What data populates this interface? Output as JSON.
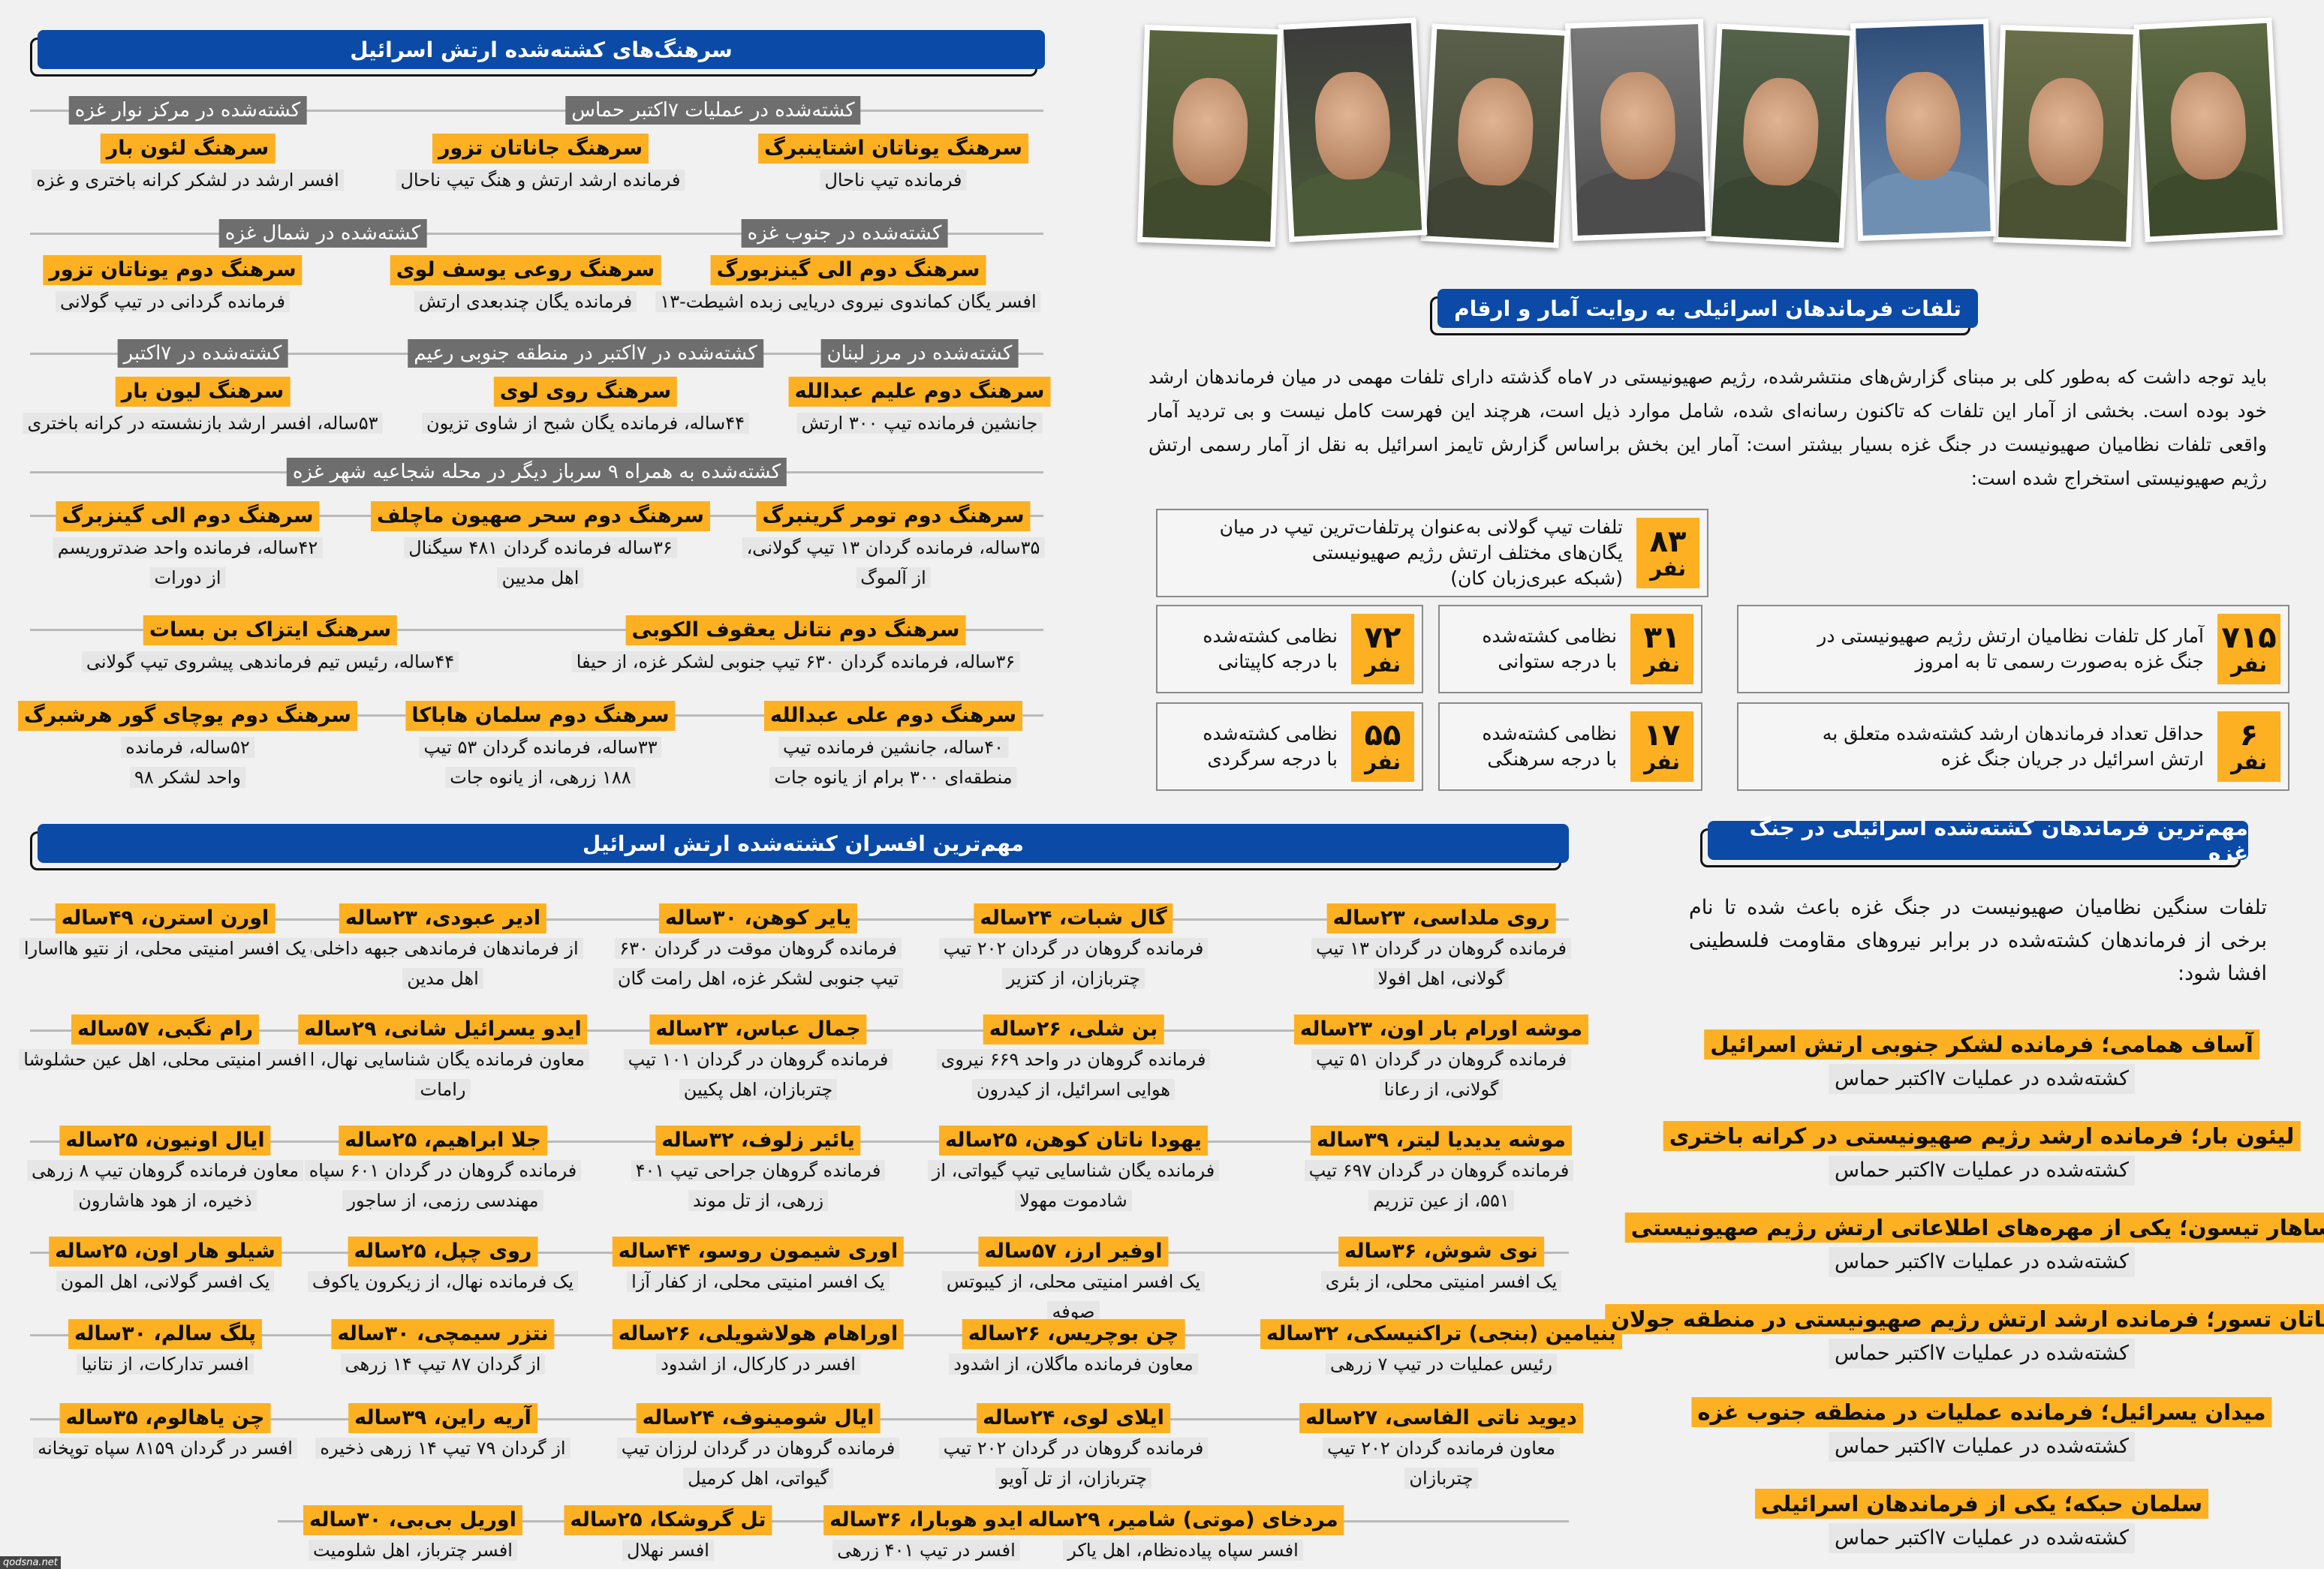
{
  "colonels": {
    "title": "سرهنگ‌های کشته‌شده ارتش اسرائیل",
    "categories": [
      "کشته‌شده در عملیات ۷اکتبر حماس",
      "کشته‌شده در مرکز نوار غزه",
      "کشته‌شده در جنوب غزه",
      "کشته‌شده در شمال غزه",
      "کشته‌شده در مرز لبنان",
      "کشته‌شده در ۷اکتبر در منطقه جنوبی رعیم",
      "کشته‌شده در ۷اکتبر",
      "کشته‌شده به همراه ۹ سرباز دیگر در محله شجاعیه شهر غزه"
    ],
    "people": [
      {
        "name": "سرهنگ یوناتان اشتاینبرگ",
        "desc": [
          "فرمانده تیپ ناحال"
        ]
      },
      {
        "name": "سرهنگ جاناتان تزور",
        "desc": [
          "فرمانده ارشد ارتش و هنگ تیپ ناحال"
        ]
      },
      {
        "name": "سرهنگ لئون بار",
        "desc": [
          "افسر ارشد در لشکر کرانه باختری و غزه"
        ]
      },
      {
        "name": "سرهنگ دوم الی گینزبورگ",
        "desc": [
          "افسر یگان کماندوی نیروی دریایی زبده اشیطت-۱۳"
        ]
      },
      {
        "name": "سرهنگ روعی یوسف لوی",
        "desc": [
          "فرمانده یگان چندبعدی ارتش"
        ]
      },
      {
        "name": "سرهنگ دوم یوناتان تزور",
        "desc": [
          "فرمانده گردانی در تیپ گولانی"
        ]
      },
      {
        "name": "سرهنگ دوم علیم عبدالله",
        "desc": [
          "جانشین فرمانده تیپ ۳۰۰ ارتش"
        ]
      },
      {
        "name": "سرهنگ روی لوی",
        "desc": [
          "۴۴ساله، فرمانده یگان شبح از شاوی تزیون"
        ]
      },
      {
        "name": "سرهنگ لیون بار",
        "desc": [
          "۵۳ساله، افسر ارشد بازنشسته در کرانه باختری"
        ]
      },
      {
        "name": "سرهنگ دوم تومر گرینبرگ",
        "desc": [
          "۳۵ساله، فرمانده گردان ۱۳ تیپ گولانی،",
          "از آلموگ"
        ]
      },
      {
        "name": "سرهنگ دوم سحر صهیون ماچلف",
        "desc": [
          "۳۶ساله فرمانده گردان ۴۸۱ سیگنال",
          "اهل مدیین"
        ]
      },
      {
        "name": "سرهنگ دوم الی گینزبرگ",
        "desc": [
          "۴۲ساله، فرمانده واحد ضدتروریسم",
          "از دورات"
        ]
      },
      {
        "name": "سرهنگ دوم نتانل یعقوف الکوبی",
        "desc": [
          "۳۶ساله، فرمانده گردان ۶۳۰ تیپ جنوبی لشکر غزه، از حیفا"
        ]
      },
      {
        "name": "سرهنگ ایتزاک بن بسات",
        "desc": [
          "۴۴ساله، رئیس تیم فرماندهی پیشروی تیپ گولانی"
        ]
      },
      {
        "name": "سرهنگ دوم علی عبدالله",
        "desc": [
          "۴۰ساله، جانشین فرمانده تیپ",
          "منطقه‌ای ۳۰۰ برام از یانوه جات"
        ]
      },
      {
        "name": "سرهنگ دوم سلمان هاباکا",
        "desc": [
          "۳۳ساله، فرمانده گردان ۵۳ تیپ",
          "۱۸۸ زرهی، از یانوه جات"
        ]
      },
      {
        "name": "سرهنگ دوم یوچای گور هرشبرگ",
        "desc": [
          "۵۲ساله، فرمانده",
          "واحد لشکر ۹۸"
        ]
      }
    ]
  },
  "stats": {
    "title": "تلفات فرماندهان اسرائیلی به روایت آمار و ارقام",
    "intro": "باید توجه داشت که به‌طور کلی بر مبنای گزارش‌های منتشرشده، رژیم صهیونیستی در ۷ماه گذشته دارای تلفات مهمی در میان فرماندهان ارشد خود بوده است. بخشی از آمار این تلفات که تاکنون رسانه‌ای شده، شامل موارد ذیل است، هرچند این فهرست کامل نیست و بی تردید آمار واقعی تلفات نظامیان صهیونیست در جنگ غزه بسیار بیشتر است: آمار این بخش براساس گزارش تایمز اسرائیل به نقل از آمار رسمی ارتش رژیم صهیونیستی استخراج شده است:",
    "unit": "نفر",
    "boxes": [
      {
        "value": "۸۳",
        "text": [
          "تلفات تیپ گولانی به‌عنوان پرتلفات‌ترین تیپ در میان",
          "یگان‌های مختلف ارتش رژیم صهیونیستی",
          "(شبکه عبری‌زبان کان)"
        ]
      },
      {
        "value": "۷۱۵",
        "text": [
          "آمار کل تلفات نظامیان ارتش رژیم صهیونیستی در",
          "جنگ غزه به‌صورت رسمی تا به امروز"
        ]
      },
      {
        "value": "۳۱",
        "text": [
          "نظامی کشته‌شده",
          "با درجه ستوانی"
        ]
      },
      {
        "value": "۷۲",
        "text": [
          "نظامی کشته‌شده",
          "با درجه کاپیتانی"
        ]
      },
      {
        "value": "۶",
        "text": [
          "حداقل تعداد فرماندهان ارشد کشته‌شده متعلق به",
          "ارتش اسرائیل در جریان جنگ غزه"
        ]
      },
      {
        "value": "۱۷",
        "text": [
          "نظامی کشته‌شده",
          "با درجه سرهنگی"
        ]
      },
      {
        "value": "۵۵",
        "text": [
          "نظامی کشته‌شده",
          "با درجه سرگردی"
        ]
      }
    ]
  },
  "officers": {
    "title": "مهم‌ترین افسران کشته‌شده ارتش اسرائیل",
    "rows": [
      [
        {
          "name": "روی ملداسی، ۲۳ساله",
          "desc": "فرمانده گروهان در گردان ۱۳ تیپ گولانی، اهل افولا"
        },
        {
          "name": "گال شبات، ۲۴ساله",
          "desc": "فرمانده گروهان در گردان ۲۰۲ تیپ چتربازان، از کتزیر"
        },
        {
          "name": "یایر کوهن، ۳۰ساله",
          "desc": "فرمانده گروهان موقت در گردان ۶۳۰ تیپ جنوبی لشکر غزه، اهل رامت گان"
        },
        {
          "name": "ادیر عبودی، ۲۳ساله",
          "desc": "از فرماندهان فرماندهی جبهه داخلی، اهل مدین"
        },
        {
          "name": "اورن استرن، ۴۹ساله",
          "desc": "یک افسر امنیتی محلی، از نتیو هااسارا"
        }
      ],
      [
        {
          "name": "موشه اورام بار اون، ۲۳ساله",
          "desc": "فرمانده گروهان در گردان ۵۱ تیپ گولانی، از رعانا"
        },
        {
          "name": "بن شلی، ۲۶ساله",
          "desc": "فرمانده گروهان در واحد ۶۶۹ نیروی هوایی اسرائیل، از کیدرون"
        },
        {
          "name": "جمال عباس، ۲۳ساله",
          "desc": "فرمانده گروهان در گردان ۱۰۱ تیپ چتربازان، اهل پکیین"
        },
        {
          "name": "ایدو یسرائیل شانی، ۲۹ساله",
          "desc": "معاون فرمانده یگان شناسایی نهال، از رامات"
        },
        {
          "name": "رام نگبی، ۵۷ساله",
          "desc": "افسر امنیتی محلی، اهل عین حشلوشا"
        }
      ],
      [
        {
          "name": "موشه یدیدیا لیتر، ۳۹ساله",
          "desc": "فرمانده گروهان در گردان ۶۹۷ تیپ ۵۵۱، از عین تزریم"
        },
        {
          "name": "یهودا ناتان کوهن، ۲۵ساله",
          "desc": "فرمانده یگان شناسایی تیپ گیواتی، از شادموت مهولا"
        },
        {
          "name": "یائیر زلوف، ۳۲ساله",
          "desc": "فرمانده گروهان جراحی تیپ ۴۰۱ زرهی، از تل موند"
        },
        {
          "name": "جلا ابراهیم، ۲۵ساله",
          "desc": "فرمانده گروهان در گردان ۶۰۱ سپاه مهندسی رزمی، از ساجور"
        },
        {
          "name": "ایال اونیون، ۲۵ساله",
          "desc": "معاون فرمانده گروهان تیپ ۸ زرهی ذخیره، از هود هاشارون"
        }
      ],
      [
        {
          "name": "نوی شوش، ۳۶ساله",
          "desc": "یک افسر امنیتی محلی، از بئری"
        },
        {
          "name": "اوفیر ارز، ۵۷ساله",
          "desc": "یک افسر امنیتی محلی، از کیبوتس صوفه"
        },
        {
          "name": "اوری شیمون روسو، ۴۴ساله",
          "desc": "یک افسر امنیتی محلی، از کفار آزا"
        },
        {
          "name": "روی چپل، ۲۵ساله",
          "desc": "یک فرمانده نهال، از زیکرون یاکوف"
        },
        {
          "name": "شیلو هار اون، ۲۵ساله",
          "desc": "یک افسر گولانی، اهل المون"
        }
      ],
      [
        {
          "name": "بنیامین (بنجی) تراکنیسکی، ۳۲ساله",
          "desc": "رئیس عملیات در تیپ ۷ زرهی"
        },
        {
          "name": "چن بوچریس، ۲۶ساله",
          "desc": "معاون فرمانده ماگلان، از اشدود"
        },
        {
          "name": "اوراهام هولاشویلی، ۲۶ساله",
          "desc": "افسر در کارکال، از اشدود"
        },
        {
          "name": "نتزر سیمچی، ۳۰ساله",
          "desc": "از گردان ۸۷ تیپ ۱۴ زرهی"
        },
        {
          "name": "پلگ سالم، ۳۰ساله",
          "desc": "افسر تدارکات، از نتانیا"
        }
      ],
      [
        {
          "name": "دیوید ناتی الفاسی، ۲۷ساله",
          "desc": "معاون فرمانده گردان ۲۰۲ تیپ چتربازان"
        },
        {
          "name": "ایلای لوی، ۲۴ساله",
          "desc": "فرمانده گروهان در گردان ۲۰۲ تیپ چتربازان، از تل آویو"
        },
        {
          "name": "ایال شومینوف، ۲۴ساله",
          "desc": "فرمانده گروهان در گردان لرزان تیپ گیواتی، اهل کرمیل"
        },
        {
          "name": "آریه راین، ۳۹ساله",
          "desc": "از گردان ۷۹ تیپ ۱۴ زرهی ذخیره"
        },
        {
          "name": "چن یاهالوم، ۳۵ساله",
          "desc": "افسر در گردان ۸۱۵۹ سپاه توپخانه"
        }
      ],
      [
        {
          "name": "مردخای (موتی) شامیر، ۲۹ساله",
          "desc": "افسر سپاه پیاده‌نظام، اهل یاکر"
        },
        {
          "name": "ایدو هوبارا، ۳۶ساله",
          "desc": "افسر در تیپ ۴۰۱ زرهی"
        },
        {
          "name": "تل گروشکا، ۲۵ساله",
          "desc": "افسر نهلال"
        },
        {
          "name": "اوریل بی‌بی، ۳۰ساله",
          "desc": "افسر چترباز، اهل شلومیت"
        }
      ]
    ]
  },
  "commanders": {
    "title": "مهم‌ترین فرماندهان کشته‌شده اسرائیلی در جنگ غزه",
    "intro": "تلفات سنگین نظامیان صهیونیست در جنگ غزه باعث شده تا نام برخی از فرماندهان کشته‌شده در برابر نیروهای مقاومت فلسطینی افشا شود:",
    "items": [
      {
        "name": "آساف همامی؛ فرمانده لشکر جنوبی ارتش اسرائیل",
        "sub": "کشته‌شده در عملیات ۷اکتبر حماس"
      },
      {
        "name": "لیئون بار؛ فرمانده ارشد رژیم صهیونیستی در کرانه باختری",
        "sub": "کشته‌شده در عملیات ۷اکتبر حماس"
      },
      {
        "name": "ساهار تیسون؛ یکی از مهره‌های اطلاعاتی ارتش رژیم صهیونیستی",
        "sub": "کشته‌شده در عملیات ۷اکتبر حماس"
      },
      {
        "name": "یوناتان تسور؛ فرمانده ارشد ارتش رژیم صهیونیستی در منطقه جولان",
        "sub": "کشته‌شده در عملیات ۷اکتبر حماس"
      },
      {
        "name": "میدان یسرائیل؛ فرمانده عملیات در منطقه جنوب غزه",
        "sub": "کشته‌شده در عملیات ۷اکتبر حماس"
      },
      {
        "name": "سلمان حبکه؛ یکی از فرماندهان اسرائیلی",
        "sub": "کشته‌شده در عملیات ۷اکتبر حماس"
      }
    ]
  },
  "watermark": "qodsna.net",
  "colors": {
    "blue": "#0b4aa6",
    "yellow": "#fdb022",
    "gray": "#6e6e6e",
    "background": "#f1f1f1"
  }
}
